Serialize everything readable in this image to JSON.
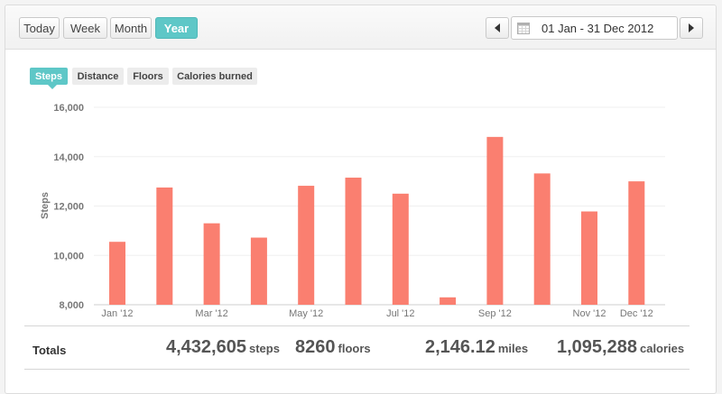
{
  "range_buttons": [
    {
      "label": "Today",
      "active": false
    },
    {
      "label": "Week",
      "active": false
    },
    {
      "label": "Month",
      "active": false
    },
    {
      "label": "Year",
      "active": true
    }
  ],
  "date_range": "01 Jan - 31 Dec 2012",
  "metric_tabs": [
    {
      "label": "Steps",
      "active": true
    },
    {
      "label": "Distance",
      "active": false
    },
    {
      "label": "Floors",
      "active": false
    },
    {
      "label": "Calories burned",
      "active": false
    }
  ],
  "accent_color": "#5ec7c7",
  "bar_color": "#fa7f70",
  "chart_data": {
    "type": "bar",
    "ylabel": "Steps",
    "ylim": [
      8000,
      16000
    ],
    "yticks": [
      8000,
      10000,
      12000,
      14000,
      16000
    ],
    "ytick_labels": [
      "8,000",
      "10,000",
      "12,000",
      "14,000",
      "16,000"
    ],
    "categories": [
      "Jan '12",
      "Feb '12",
      "Mar '12",
      "Apr '12",
      "May '12",
      "Jun '12",
      "Jul '12",
      "Aug '12",
      "Sep '12",
      "Oct '12",
      "Nov '12",
      "Dec '12"
    ],
    "xtick_labels": [
      "Jan '12",
      "",
      "Mar '12",
      "",
      "May '12",
      "",
      "Jul '12",
      "",
      "Sep '12",
      "",
      "Nov '12",
      "Dec '12"
    ],
    "values": [
      10550,
      12750,
      11300,
      10720,
      12820,
      13150,
      12500,
      8300,
      14800,
      13320,
      11780,
      13000
    ],
    "grid": true
  },
  "totals": {
    "label": "Totals",
    "steps": {
      "value": "4,432,605",
      "unit": "steps"
    },
    "floors": {
      "value": "8260",
      "unit": "floors"
    },
    "miles": {
      "value": "2,146.12",
      "unit": "miles"
    },
    "calories": {
      "value": "1,095,288",
      "unit": "calories"
    }
  }
}
